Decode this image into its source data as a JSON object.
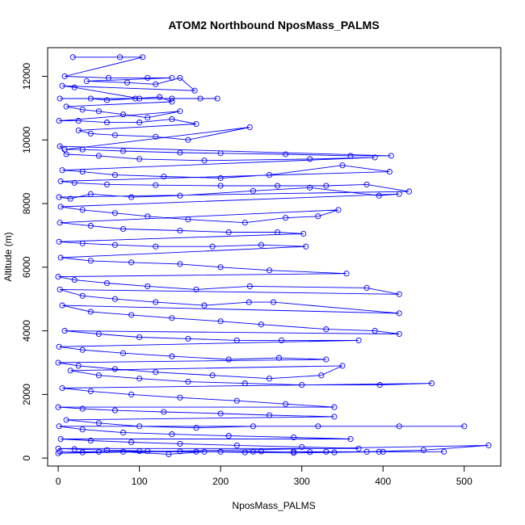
{
  "chart_data": {
    "type": "line",
    "title": "ATOM2 Northbound NposMass_PALMS",
    "xlabel": "NposMass_PALMS",
    "ylabel": "Altitude (m)",
    "xlim": [
      -13,
      545
    ],
    "ylim": [
      -250,
      12900
    ],
    "x_ticks": [
      0,
      100,
      200,
      300,
      400,
      500
    ],
    "y_ticks": [
      0,
      2000,
      4000,
      6000,
      8000,
      10000,
      12000
    ],
    "grid": false,
    "series_style": "points-and-lines",
    "colors": {
      "series": "#0000ff",
      "axes": "#000000"
    },
    "series": [
      {
        "points": [
          [
            18,
            12600
          ],
          [
            76,
            12600
          ],
          [
            104,
            12600
          ],
          [
            8,
            12000
          ],
          [
            62,
            11950
          ],
          [
            110,
            11950
          ],
          [
            140,
            11950
          ],
          [
            35,
            11850
          ],
          [
            85,
            11800
          ],
          [
            120,
            11750
          ],
          [
            150,
            11950
          ],
          [
            168,
            11550
          ],
          [
            5,
            11700
          ],
          [
            20,
            11650
          ],
          [
            100,
            11300
          ],
          [
            140,
            11300
          ],
          [
            175,
            11300
          ],
          [
            196,
            11300
          ],
          [
            2,
            11300
          ],
          [
            40,
            11300
          ],
          [
            60,
            11250
          ],
          [
            95,
            11300
          ],
          [
            125,
            11350
          ],
          [
            140,
            11200
          ],
          [
            10,
            11050
          ],
          [
            30,
            10950
          ],
          [
            50,
            10900
          ],
          [
            80,
            10800
          ],
          [
            110,
            10700
          ],
          [
            150,
            10900
          ],
          [
            1,
            10600
          ],
          [
            25,
            10600
          ],
          [
            60,
            10550
          ],
          [
            100,
            10550
          ],
          [
            140,
            10650
          ],
          [
            170,
            10500
          ],
          [
            25,
            10300
          ],
          [
            40,
            10200
          ],
          [
            70,
            10150
          ],
          [
            120,
            10100
          ],
          [
            160,
            10000
          ],
          [
            236,
            10400
          ],
          [
            8,
            9700
          ],
          [
            30,
            9700
          ],
          [
            80,
            9650
          ],
          [
            150,
            9600
          ],
          [
            200,
            9580
          ],
          [
            280,
            9550
          ],
          [
            360,
            9500
          ],
          [
            410,
            9500
          ],
          [
            2,
            9800
          ],
          [
            10,
            9550
          ],
          [
            50,
            9500
          ],
          [
            100,
            9400
          ],
          [
            180,
            9350
          ],
          [
            310,
            9400
          ],
          [
            390,
            9450
          ],
          [
            5,
            9050
          ],
          [
            30,
            9000
          ],
          [
            70,
            8900
          ],
          [
            130,
            8850
          ],
          [
            200,
            8800
          ],
          [
            260,
            8900
          ],
          [
            350,
            9200
          ],
          [
            408,
            9000
          ],
          [
            3,
            8700
          ],
          [
            20,
            8650
          ],
          [
            60,
            8600
          ],
          [
            120,
            8580
          ],
          [
            200,
            8560
          ],
          [
            270,
            8560
          ],
          [
            330,
            8560
          ],
          [
            380,
            8600
          ],
          [
            432,
            8380
          ],
          [
            1,
            8200
          ],
          [
            15,
            8150
          ],
          [
            40,
            8300
          ],
          [
            90,
            8200
          ],
          [
            150,
            8250
          ],
          [
            240,
            8400
          ],
          [
            310,
            8500
          ],
          [
            395,
            8250
          ],
          [
            420,
            8300
          ],
          [
            3,
            7900
          ],
          [
            30,
            7800
          ],
          [
            70,
            7700
          ],
          [
            110,
            7600
          ],
          [
            160,
            7500
          ],
          [
            230,
            7400
          ],
          [
            280,
            7550
          ],
          [
            320,
            7600
          ],
          [
            345,
            7800
          ],
          [
            2,
            7400
          ],
          [
            40,
            7300
          ],
          [
            80,
            7200
          ],
          [
            150,
            7150
          ],
          [
            210,
            7100
          ],
          [
            270,
            7100
          ],
          [
            302,
            7050
          ],
          [
            1,
            6800
          ],
          [
            30,
            6750
          ],
          [
            70,
            6700
          ],
          [
            120,
            6650
          ],
          [
            190,
            6650
          ],
          [
            250,
            6700
          ],
          [
            305,
            6650
          ],
          [
            3,
            6300
          ],
          [
            40,
            6200
          ],
          [
            90,
            6150
          ],
          [
            150,
            6100
          ],
          [
            200,
            6000
          ],
          [
            260,
            5900
          ],
          [
            355,
            5800
          ],
          [
            0,
            5700
          ],
          [
            20,
            5600
          ],
          [
            60,
            5500
          ],
          [
            110,
            5400
          ],
          [
            170,
            5300
          ],
          [
            236,
            5400
          ],
          [
            380,
            5350
          ],
          [
            420,
            5150
          ],
          [
            2,
            5300
          ],
          [
            30,
            5100
          ],
          [
            70,
            5000
          ],
          [
            120,
            4900
          ],
          [
            180,
            4800
          ],
          [
            235,
            4900
          ],
          [
            265,
            4900
          ],
          [
            420,
            4550
          ],
          [
            5,
            4800
          ],
          [
            40,
            4600
          ],
          [
            90,
            4500
          ],
          [
            140,
            4400
          ],
          [
            200,
            4300
          ],
          [
            250,
            4200
          ],
          [
            330,
            4050
          ],
          [
            390,
            4000
          ],
          [
            420,
            3900
          ],
          [
            8,
            4000
          ],
          [
            50,
            3900
          ],
          [
            100,
            3800
          ],
          [
            160,
            3750
          ],
          [
            220,
            3700
          ],
          [
            275,
            3700
          ],
          [
            370,
            3700
          ],
          [
            1,
            3500
          ],
          [
            30,
            3400
          ],
          [
            80,
            3300
          ],
          [
            140,
            3200
          ],
          [
            210,
            3100
          ],
          [
            272,
            3150
          ],
          [
            330,
            3100
          ],
          [
            0,
            3000
          ],
          [
            25,
            2900
          ],
          [
            70,
            2800
          ],
          [
            120,
            2700
          ],
          [
            190,
            2600
          ],
          [
            260,
            2500
          ],
          [
            324,
            2600
          ],
          [
            350,
            2900
          ],
          [
            15,
            2750
          ],
          [
            50,
            2600
          ],
          [
            100,
            2500
          ],
          [
            160,
            2400
          ],
          [
            230,
            2350
          ],
          [
            300,
            2300
          ],
          [
            396,
            2300
          ],
          [
            460,
            2350
          ],
          [
            5,
            2200
          ],
          [
            40,
            2100
          ],
          [
            90,
            2000
          ],
          [
            150,
            1900
          ],
          [
            220,
            1800
          ],
          [
            280,
            1700
          ],
          [
            340,
            1600
          ],
          [
            0,
            1600
          ],
          [
            30,
            1550
          ],
          [
            70,
            1500
          ],
          [
            130,
            1450
          ],
          [
            200,
            1400
          ],
          [
            260,
            1350
          ],
          [
            340,
            1300
          ],
          [
            10,
            1200
          ],
          [
            50,
            1100
          ],
          [
            100,
            1000
          ],
          [
            170,
            950
          ],
          [
            240,
            1000
          ],
          [
            320,
            1000
          ],
          [
            420,
            1000
          ],
          [
            500,
            1000
          ],
          [
            1,
            1000
          ],
          [
            30,
            900
          ],
          [
            80,
            800
          ],
          [
            140,
            750
          ],
          [
            210,
            700
          ],
          [
            290,
            650
          ],
          [
            360,
            600
          ],
          [
            3,
            600
          ],
          [
            40,
            550
          ],
          [
            90,
            500
          ],
          [
            150,
            450
          ],
          [
            220,
            400
          ],
          [
            300,
            350
          ],
          [
            370,
            300
          ],
          [
            0,
            300
          ],
          [
            20,
            280
          ],
          [
            60,
            250
          ],
          [
            110,
            220
          ],
          [
            170,
            200
          ],
          [
            240,
            200
          ],
          [
            290,
            200
          ],
          [
            330,
            200
          ],
          [
            395,
            200
          ],
          [
            475,
            200
          ],
          [
            2,
            200
          ],
          [
            50,
            200
          ],
          [
            100,
            220
          ],
          [
            150,
            210
          ],
          [
            200,
            200
          ],
          [
            250,
            210
          ],
          [
            310,
            190
          ],
          [
            380,
            200
          ],
          [
            450,
            250
          ],
          [
            530,
            400
          ],
          [
            0,
            150
          ],
          [
            30,
            180
          ],
          [
            80,
            200
          ],
          [
            136,
            120
          ],
          [
            180,
            200
          ],
          [
            230,
            180
          ],
          [
            290,
            160
          ],
          [
            340,
            180
          ],
          [
            400,
            200
          ]
        ]
      }
    ]
  }
}
